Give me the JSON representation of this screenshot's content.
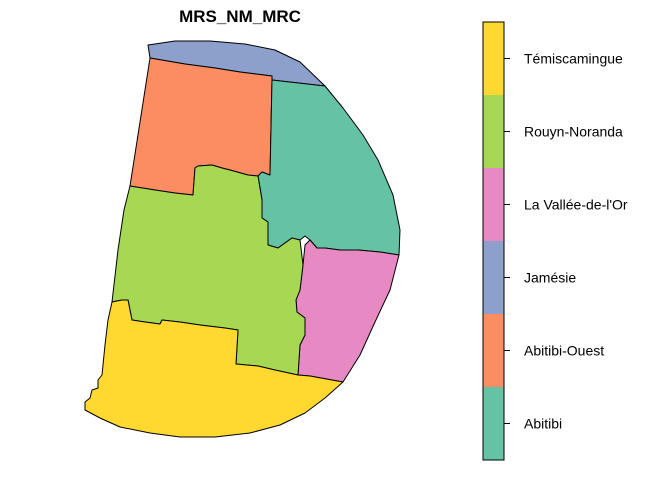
{
  "map": {
    "title": "MRS_NM_MRC",
    "regions": [
      {
        "name": "Témiscamingue",
        "color": "#FFD92F"
      },
      {
        "name": "Rouyn-Noranda",
        "color": "#A6D854"
      },
      {
        "name": "La Vallée-de-l'Or",
        "color": "#E78AC3"
      },
      {
        "name": "Jamésie",
        "color": "#8DA0CB"
      },
      {
        "name": "Abitibi-Ouest",
        "color": "#FC8D62"
      },
      {
        "name": "Abitibi",
        "color": "#66C2A5"
      }
    ]
  },
  "legend": {
    "items": [
      {
        "label": "Témiscamingue",
        "color": "#FFD92F"
      },
      {
        "label": "Rouyn-Noranda",
        "color": "#A6D854"
      },
      {
        "label": "La Vallée-de-l'Or",
        "color": "#E78AC3"
      },
      {
        "label": "Jamésie",
        "color": "#8DA0CB"
      },
      {
        "label": "Abitibi-Ouest",
        "color": "#FC8D62"
      },
      {
        "label": "Abitibi",
        "color": "#66C2A5"
      }
    ]
  }
}
